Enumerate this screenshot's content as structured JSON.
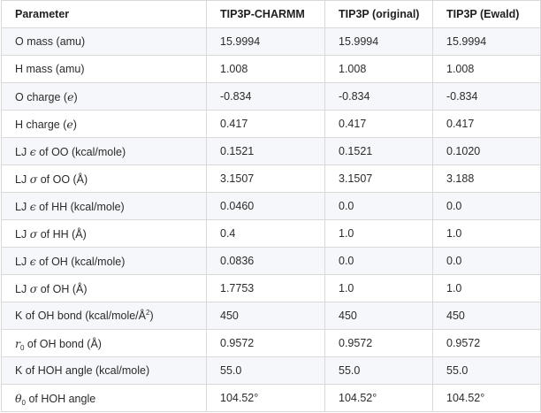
{
  "table": {
    "headers": [
      "Parameter",
      "TIP3P-CHARMM",
      "TIP3P (original)",
      "TIP3P (Ewald)"
    ],
    "rows": [
      {
        "pre": "O mass (amu)",
        "sym": "",
        "sup": "",
        "post": "",
        "values": [
          "15.9994",
          "15.9994",
          "15.9994"
        ]
      },
      {
        "pre": "H mass (amu)",
        "sym": "",
        "sup": "",
        "post": "",
        "values": [
          "1.008",
          "1.008",
          "1.008"
        ]
      },
      {
        "pre": "O charge (",
        "sym": "e",
        "sup": "",
        "post": ")",
        "values": [
          "-0.834",
          "-0.834",
          "-0.834"
        ]
      },
      {
        "pre": "H charge (",
        "sym": "e",
        "sup": "",
        "post": ")",
        "values": [
          "0.417",
          "0.417",
          "0.417"
        ]
      },
      {
        "pre": "LJ ",
        "sym": "ϵ",
        "sup": "",
        "post": " of OO (kcal/mole)",
        "values": [
          "0.1521",
          "0.1521",
          "0.1020"
        ]
      },
      {
        "pre": "LJ ",
        "sym": "σ",
        "sup": "",
        "post": " of OO (Å)",
        "values": [
          "3.1507",
          "3.1507",
          "3.188"
        ]
      },
      {
        "pre": "LJ ",
        "sym": "ϵ",
        "sup": "",
        "post": " of HH (kcal/mole)",
        "values": [
          "0.0460",
          "0.0",
          "0.0"
        ]
      },
      {
        "pre": "LJ ",
        "sym": "σ",
        "sup": "",
        "post": " of HH (Å)",
        "values": [
          "0.4",
          "1.0",
          "1.0"
        ]
      },
      {
        "pre": "LJ ",
        "sym": "ϵ",
        "sup": "",
        "post": " of OH (kcal/mole)",
        "values": [
          "0.0836",
          "0.0",
          "0.0"
        ]
      },
      {
        "pre": "LJ ",
        "sym": "σ",
        "sup": "",
        "post": " of OH (Å)",
        "values": [
          "1.7753",
          "1.0",
          "1.0"
        ]
      },
      {
        "pre": "K of OH bond (kcal/mole/Å",
        "sym": "",
        "sup": "2",
        "post": ")",
        "values": [
          "450",
          "450",
          "450"
        ]
      },
      {
        "pre": "",
        "sym": "r",
        "sub": "0",
        "post": " of OH bond (Å)",
        "values": [
          "0.9572",
          "0.9572",
          "0.9572"
        ]
      },
      {
        "pre": "K of HOH angle (kcal/mole)",
        "sym": "",
        "sup": "",
        "post": "",
        "values": [
          "55.0",
          "55.0",
          "55.0"
        ]
      },
      {
        "pre": "",
        "sym": "θ",
        "sub": "0",
        "post": " of HOH angle",
        "values": [
          "104.52°",
          "104.52°",
          "104.52°"
        ]
      }
    ]
  }
}
